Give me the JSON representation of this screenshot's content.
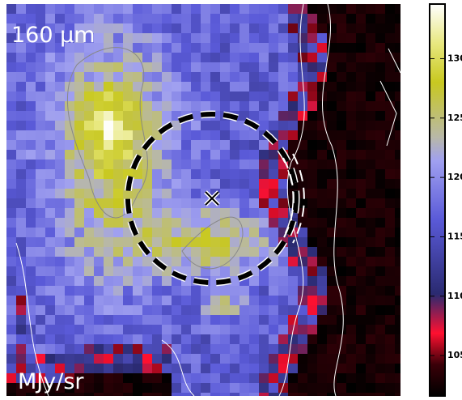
{
  "image": {
    "wavelength_label": "160 μm",
    "unit_label": "MJy/sr"
  },
  "colorbar": {
    "ylim": [
      101.6,
      134.6
    ],
    "ticks": [
      130,
      125,
      120,
      115,
      110,
      105
    ]
  }
}
